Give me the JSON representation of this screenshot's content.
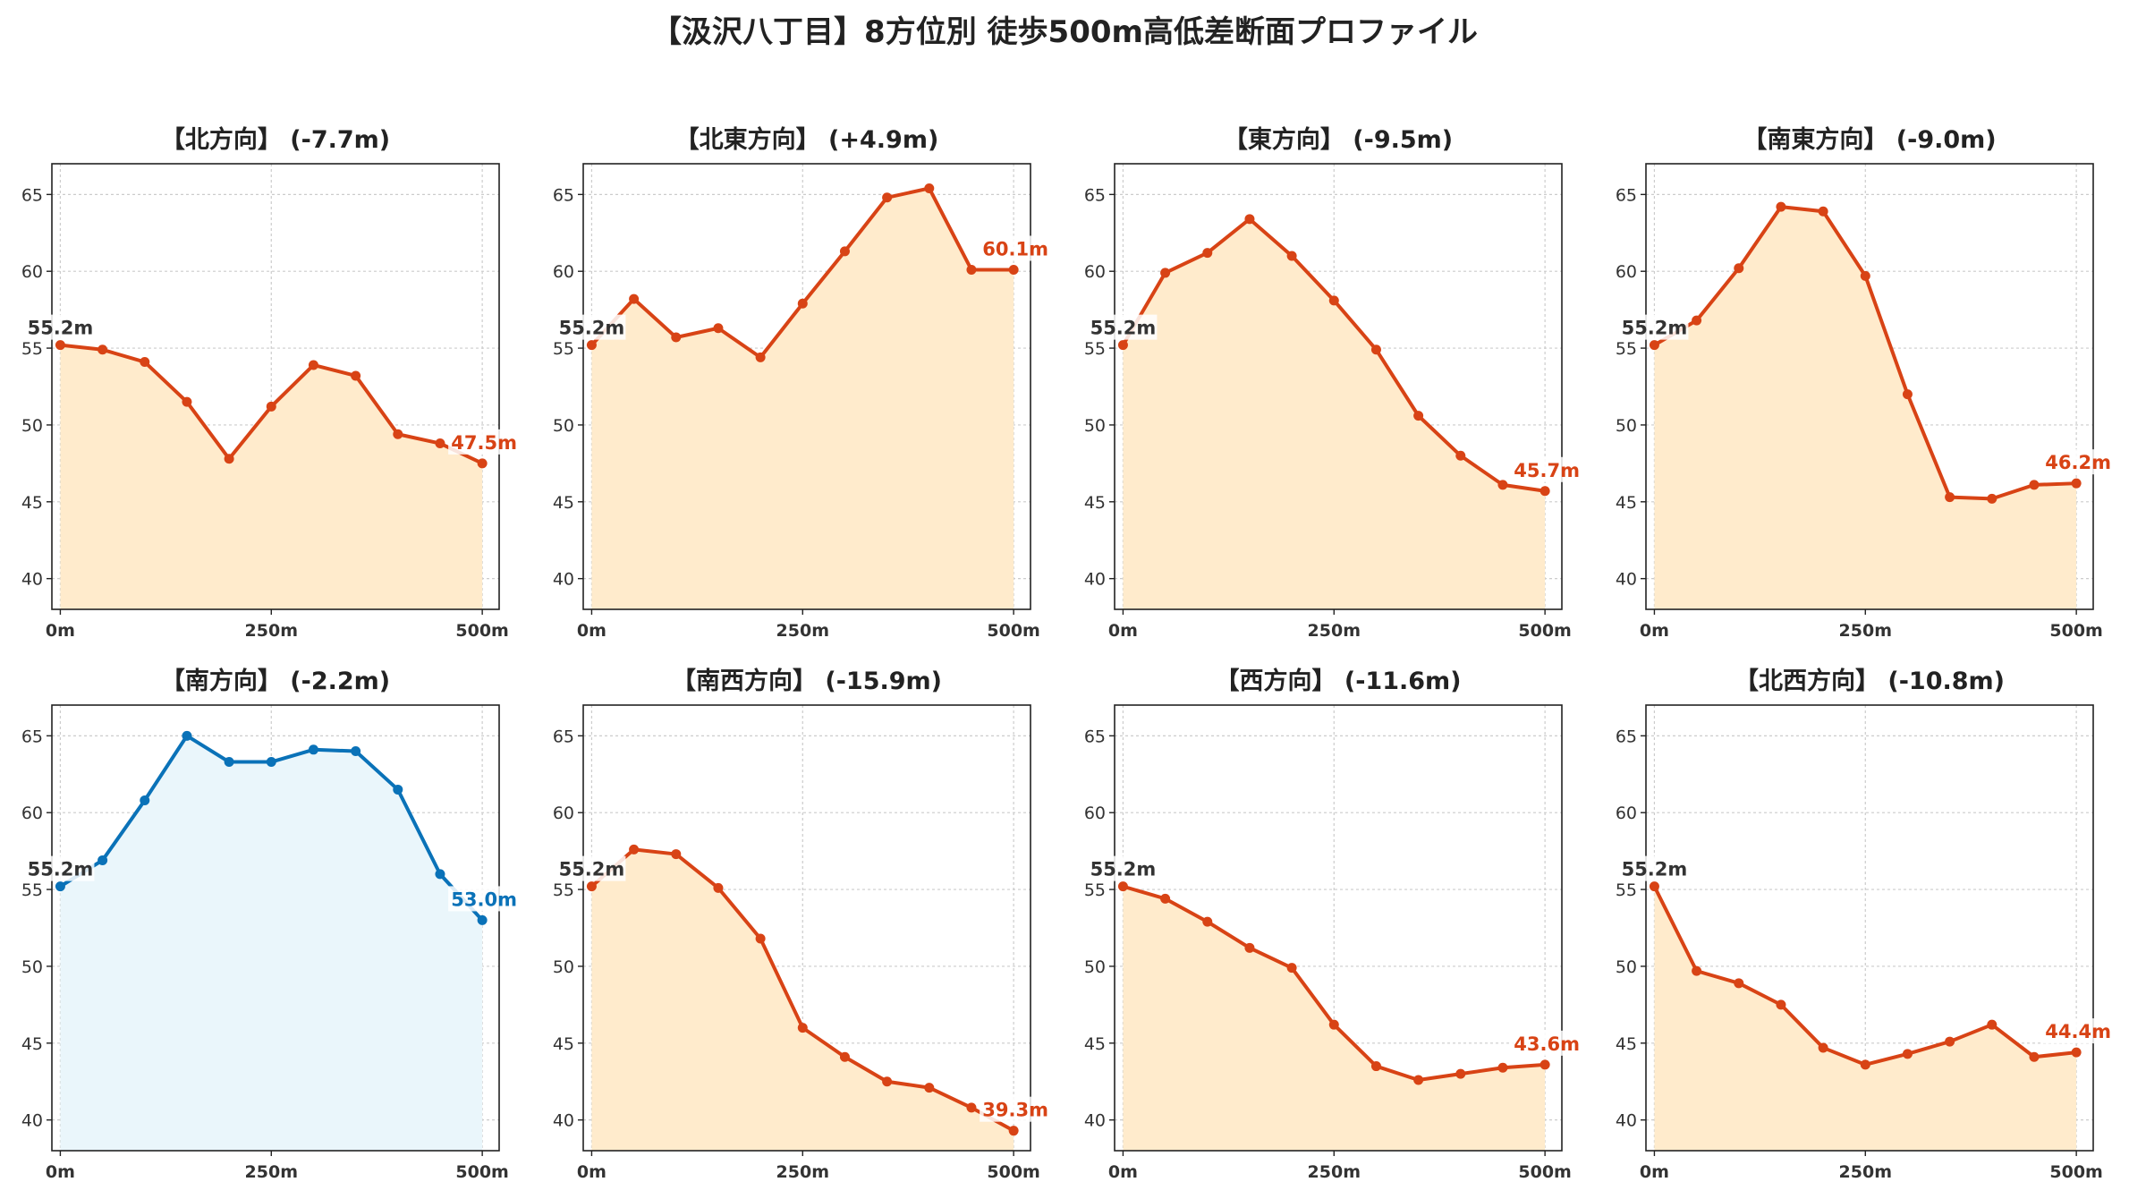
{
  "title": "【汲沢八丁目】8方位別 徒歩500m高低差断面プロファイル",
  "colors": {
    "down_line": "#d84315",
    "down_fill": "#ffebcc",
    "up_line": "#0a72b8",
    "up_fill": "#eaf6fb"
  },
  "chart_data": [
    {
      "type": "area",
      "title": "【北方向】 (-7.7m)",
      "x": [
        0,
        50,
        100,
        150,
        200,
        250,
        300,
        350,
        400,
        450,
        500
      ],
      "values": [
        55.2,
        54.9,
        54.1,
        51.5,
        47.8,
        51.2,
        53.9,
        53.2,
        49.4,
        48.8,
        47.5
      ],
      "start_label": "55.2m",
      "end_label": "47.5m",
      "highlight": false,
      "xticks": [
        "0m",
        "250m",
        "500m"
      ],
      "yticks": [
        40,
        45,
        50,
        55,
        60,
        65
      ],
      "ylim": [
        38,
        67
      ],
      "grid": true
    },
    {
      "type": "area",
      "title": "【北東方向】 (+4.9m)",
      "x": [
        0,
        50,
        100,
        150,
        200,
        250,
        300,
        350,
        400,
        450,
        500
      ],
      "values": [
        55.2,
        58.2,
        55.7,
        56.3,
        54.4,
        57.9,
        61.3,
        64.8,
        65.4,
        60.1,
        60.1
      ],
      "start_label": "55.2m",
      "end_label": "60.1m",
      "highlight": false,
      "xticks": [
        "0m",
        "250m",
        "500m"
      ],
      "yticks": [
        40,
        45,
        50,
        55,
        60,
        65
      ],
      "ylim": [
        38,
        67
      ],
      "grid": true
    },
    {
      "type": "area",
      "title": "【東方向】 (-9.5m)",
      "x": [
        0,
        50,
        100,
        150,
        200,
        250,
        300,
        350,
        400,
        450,
        500
      ],
      "values": [
        55.2,
        59.9,
        61.2,
        63.4,
        61.0,
        58.1,
        54.9,
        50.6,
        48.0,
        46.1,
        45.7
      ],
      "start_label": "55.2m",
      "end_label": "45.7m",
      "highlight": false,
      "xticks": [
        "0m",
        "250m",
        "500m"
      ],
      "yticks": [
        40,
        45,
        50,
        55,
        60,
        65
      ],
      "ylim": [
        38,
        67
      ],
      "grid": true
    },
    {
      "type": "area",
      "title": "【南東方向】 (-9.0m)",
      "x": [
        0,
        50,
        100,
        150,
        200,
        250,
        300,
        350,
        400,
        450,
        500
      ],
      "values": [
        55.2,
        56.8,
        60.2,
        64.2,
        63.9,
        59.7,
        52.0,
        45.3,
        45.2,
        46.1,
        46.2
      ],
      "start_label": "55.2m",
      "end_label": "46.2m",
      "highlight": false,
      "xticks": [
        "0m",
        "250m",
        "500m"
      ],
      "yticks": [
        40,
        45,
        50,
        55,
        60,
        65
      ],
      "ylim": [
        38,
        67
      ],
      "grid": true
    },
    {
      "type": "area",
      "title": "【南方向】 (-2.2m)",
      "x": [
        0,
        50,
        100,
        150,
        200,
        250,
        300,
        350,
        400,
        450,
        500
      ],
      "values": [
        55.2,
        56.9,
        60.8,
        65.0,
        63.3,
        63.3,
        64.1,
        64.0,
        61.5,
        56.0,
        53.0
      ],
      "start_label": "55.2m",
      "end_label": "53.0m",
      "highlight": true,
      "xticks": [
        "0m",
        "250m",
        "500m"
      ],
      "yticks": [
        40,
        45,
        50,
        55,
        60,
        65
      ],
      "ylim": [
        38,
        67
      ],
      "grid": true
    },
    {
      "type": "area",
      "title": "【南西方向】 (-15.9m)",
      "x": [
        0,
        50,
        100,
        150,
        200,
        250,
        300,
        350,
        400,
        450,
        500
      ],
      "values": [
        55.2,
        57.6,
        57.3,
        55.1,
        51.8,
        46.0,
        44.1,
        42.5,
        42.1,
        40.8,
        39.3
      ],
      "start_label": "55.2m",
      "end_label": "39.3m",
      "highlight": false,
      "xticks": [
        "0m",
        "250m",
        "500m"
      ],
      "yticks": [
        40,
        45,
        50,
        55,
        60,
        65
      ],
      "ylim": [
        38,
        67
      ],
      "grid": true
    },
    {
      "type": "area",
      "title": "【西方向】 (-11.6m)",
      "x": [
        0,
        50,
        100,
        150,
        200,
        250,
        300,
        350,
        400,
        450,
        500
      ],
      "values": [
        55.2,
        54.4,
        52.9,
        51.2,
        49.9,
        46.2,
        43.5,
        42.6,
        43.0,
        43.4,
        43.6
      ],
      "start_label": "55.2m",
      "end_label": "43.6m",
      "highlight": false,
      "xticks": [
        "0m",
        "250m",
        "500m"
      ],
      "yticks": [
        40,
        45,
        50,
        55,
        60,
        65
      ],
      "ylim": [
        38,
        67
      ],
      "grid": true
    },
    {
      "type": "area",
      "title": "【北西方向】 (-10.8m)",
      "x": [
        0,
        50,
        100,
        150,
        200,
        250,
        300,
        350,
        400,
        450,
        500
      ],
      "values": [
        55.2,
        49.7,
        48.9,
        47.5,
        44.7,
        43.6,
        44.3,
        45.1,
        46.2,
        44.1,
        44.4
      ],
      "start_label": "55.2m",
      "end_label": "44.4m",
      "highlight": false,
      "xticks": [
        "0m",
        "250m",
        "500m"
      ],
      "yticks": [
        40,
        45,
        50,
        55,
        60,
        65
      ],
      "ylim": [
        38,
        67
      ],
      "grid": true
    }
  ]
}
